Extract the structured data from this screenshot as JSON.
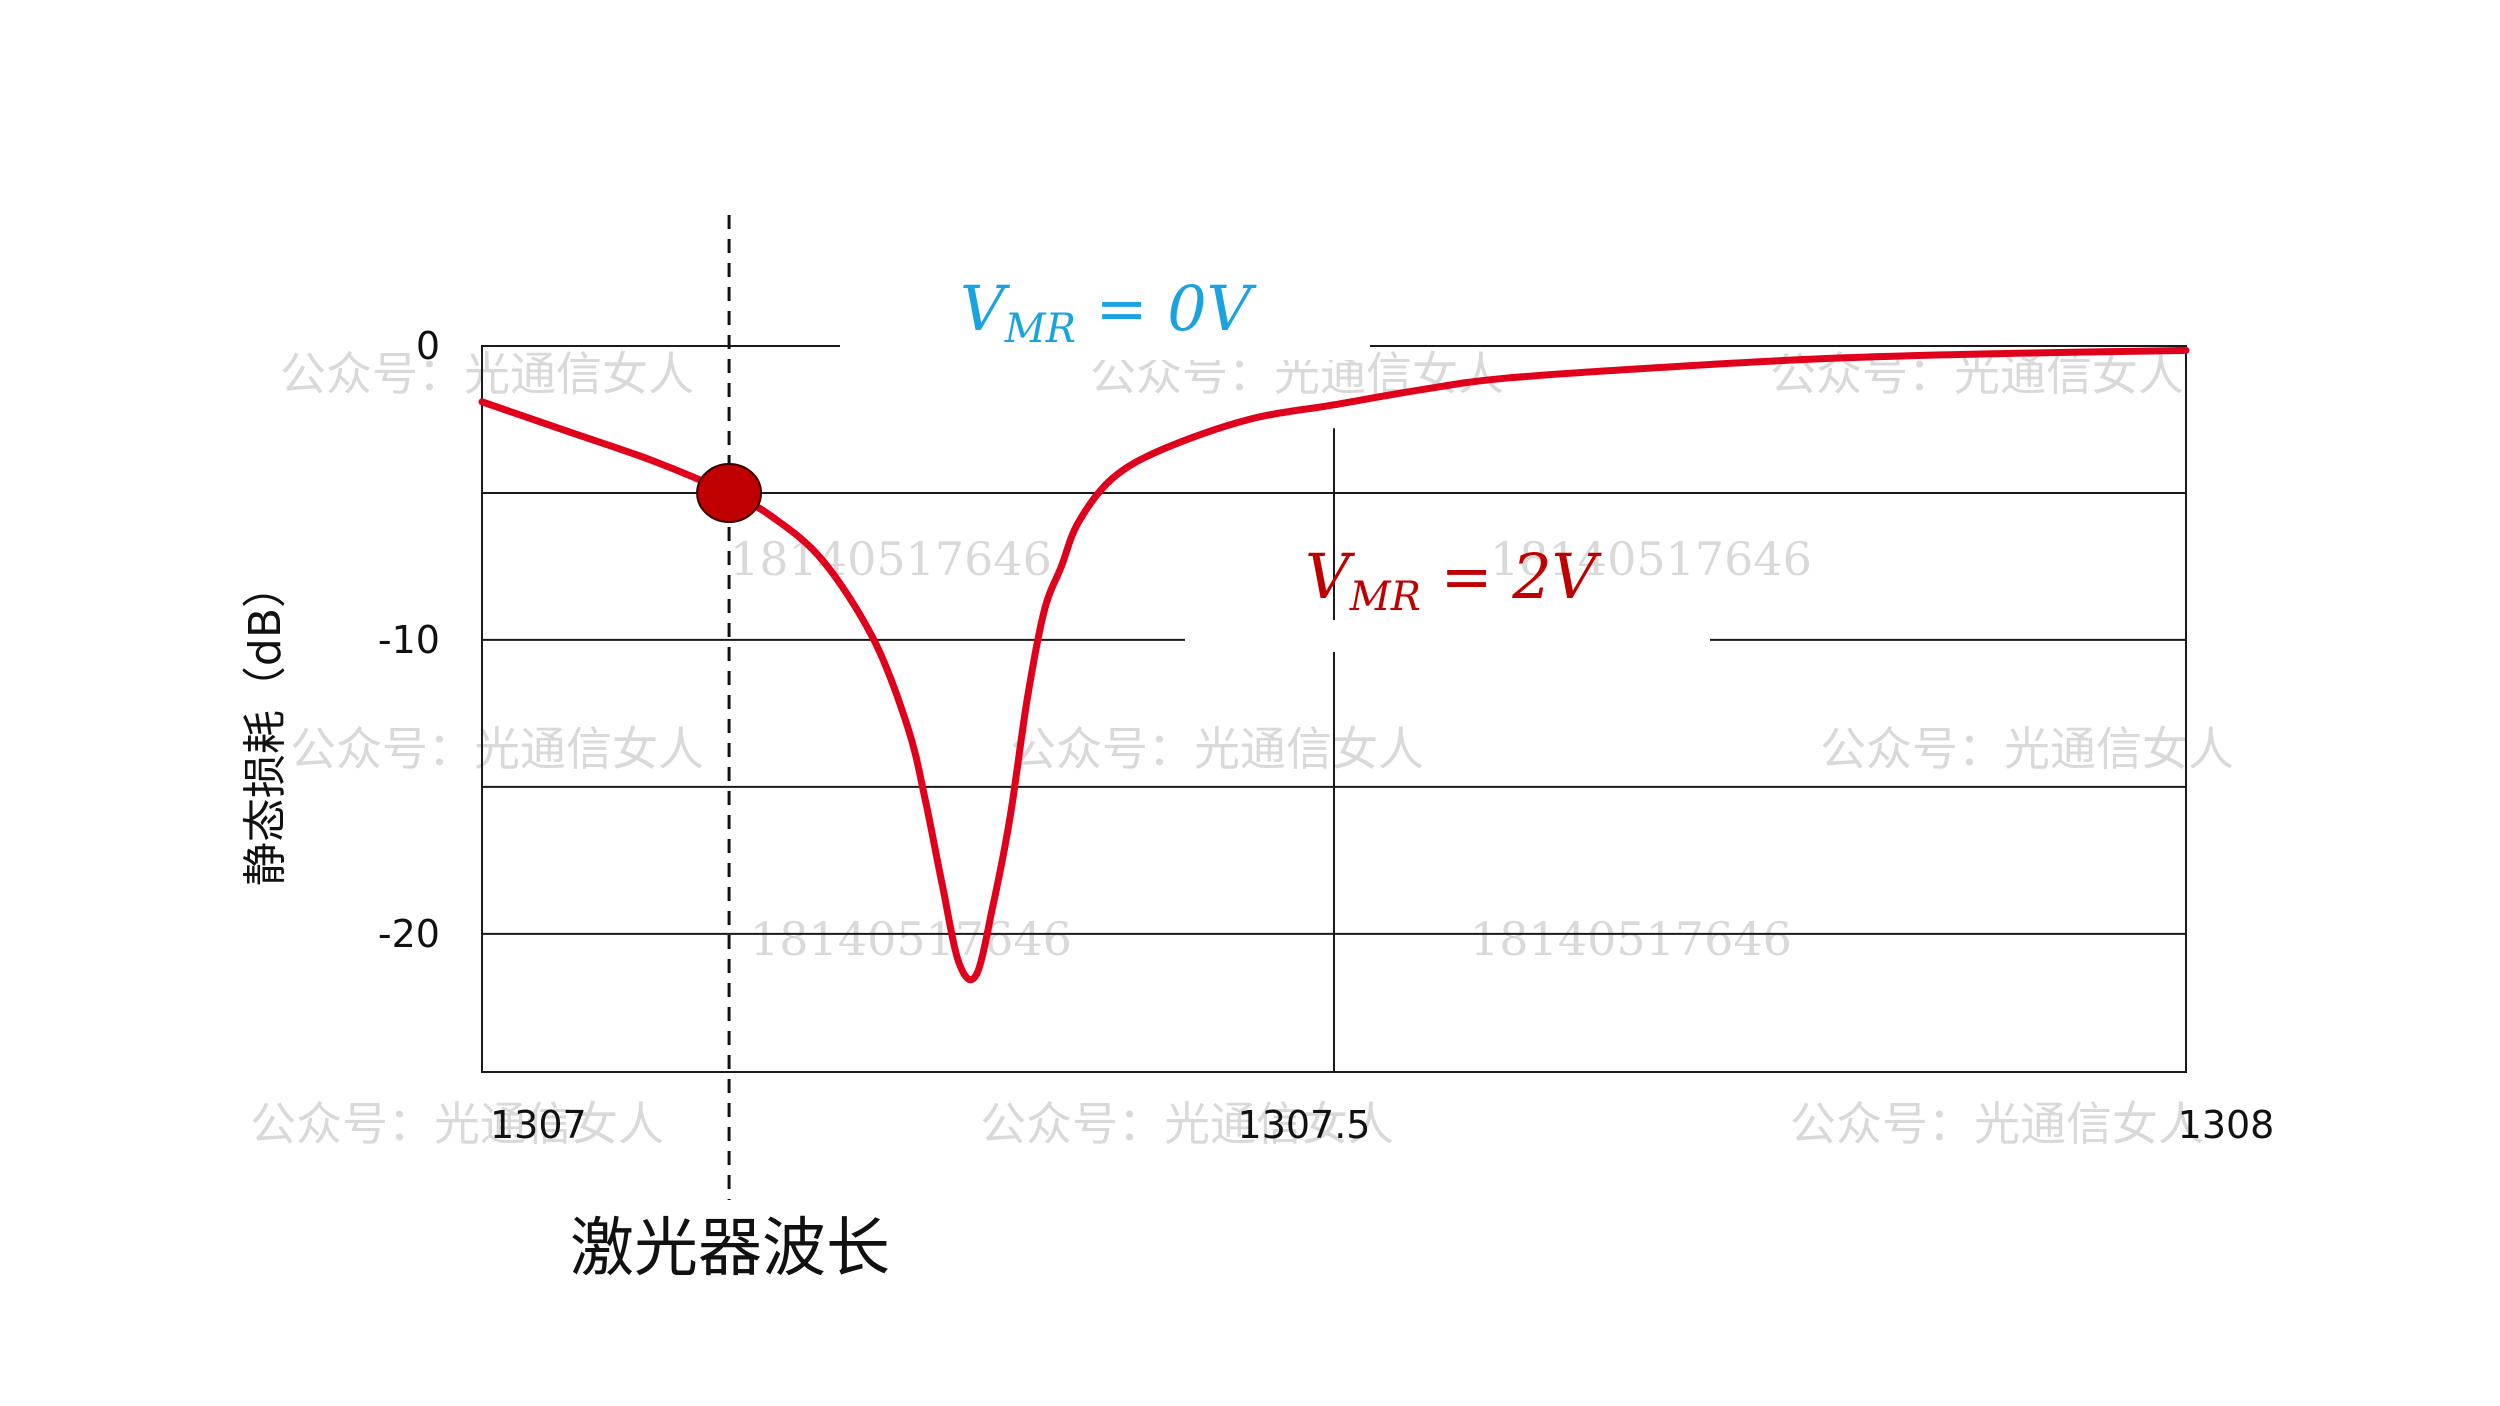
{
  "chart_data": {
    "type": "line",
    "xlabel": "激光器波长",
    "ylabel": "静态损耗（dB）",
    "xlim": [
      1307,
      1308
    ],
    "ylim": [
      -24.7,
      0
    ],
    "x_ticks": [
      "1307",
      "1307.5",
      "1308"
    ],
    "y_ticks": [
      "0",
      "-10",
      "-20"
    ],
    "grid": true,
    "series": [
      {
        "color": "#e0001b",
        "x": [
          1307.0,
          1307.05,
          1307.1,
          1307.145,
          1307.17,
          1307.2,
          1307.23,
          1307.25,
          1307.26,
          1307.27,
          1307.28,
          1307.29,
          1307.3,
          1307.31,
          1307.32,
          1307.33,
          1307.34,
          1307.35,
          1307.37,
          1307.4,
          1307.45,
          1307.5,
          1307.55,
          1307.6,
          1307.7,
          1307.8,
          1307.9,
          1308.0
        ],
        "y": [
          -1.9,
          -2.9,
          -3.9,
          -5.0,
          -5.8,
          -7.3,
          -10.0,
          -13.0,
          -15.4,
          -18.3,
          -21.0,
          -21.4,
          -19.0,
          -16.0,
          -12.0,
          -9.0,
          -7.5,
          -6.0,
          -4.5,
          -3.5,
          -2.5,
          -2.0,
          -1.5,
          -1.1,
          -0.7,
          -0.4,
          -0.25,
          -0.15
        ]
      }
    ],
    "annotations": [
      {
        "label": "V",
        "subscript": "MR",
        "rest": " = 0V",
        "color": "#1aa3e0"
      },
      {
        "label": "V",
        "subscript": "MR",
        "rest": " = 2V",
        "color": "#c00000"
      }
    ],
    "marker": {
      "x": 1307.145,
      "y": -5.0,
      "color": "#c00000"
    },
    "reference_line_x": 1307.145
  },
  "watermarks": [
    "公众号：光通信女人",
    "18140517646"
  ],
  "colors": {
    "axis": "#1a1a1a",
    "curve": "#e0001b",
    "marker": "#c00000"
  }
}
